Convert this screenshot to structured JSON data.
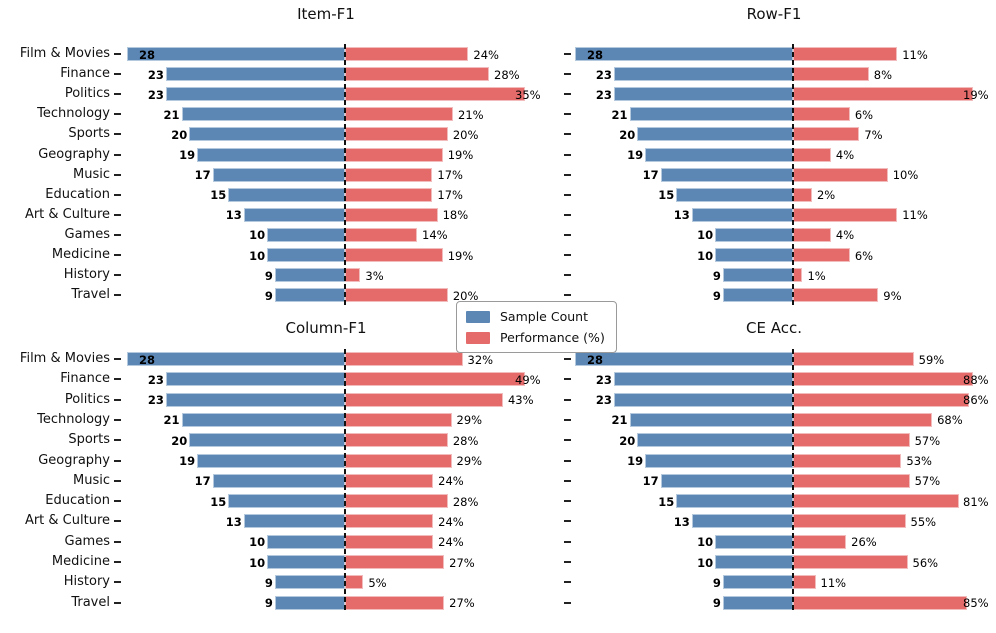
{
  "chart_data": {
    "type": "bar",
    "variant": "diverging-horizontal-grid-2x2",
    "categories": [
      "Film & Movies",
      "Finance",
      "Politics",
      "Technology",
      "Sports",
      "Geography",
      "Music",
      "Education",
      "Art & Culture",
      "Games",
      "Medicine",
      "History",
      "Travel"
    ],
    "sample_counts": [
      28,
      23,
      23,
      21,
      20,
      19,
      17,
      15,
      13,
      10,
      10,
      9,
      9
    ],
    "subplots": [
      {
        "title": "Item-F1",
        "values": [
          24,
          28,
          35,
          21,
          20,
          19,
          17,
          17,
          18,
          14,
          19,
          3,
          20
        ]
      },
      {
        "title": "Row-F1",
        "values": [
          11,
          8,
          19,
          6,
          7,
          4,
          10,
          2,
          11,
          4,
          6,
          1,
          9
        ]
      },
      {
        "title": "Column-F1",
        "values": [
          32,
          49,
          43,
          29,
          28,
          29,
          24,
          28,
          24,
          24,
          27,
          5,
          27
        ]
      },
      {
        "title": "CE Acc.",
        "values": [
          59,
          88,
          86,
          68,
          57,
          53,
          57,
          81,
          55,
          26,
          56,
          11,
          85
        ]
      }
    ],
    "value_suffix": "%",
    "count_axis_max": 28,
    "performance_axis": "scaled to each subplot's maximum value",
    "legend": {
      "items": [
        {
          "label": "Sample Count",
          "color": "#5C87B5"
        },
        {
          "label": "Performance (%)",
          "color": "#E56A6A"
        }
      ]
    },
    "colors": {
      "bar_blue": "#5C87B5",
      "bar_red": "#E56A6A",
      "center_line": "#111111",
      "text": "#111111",
      "background": "#ffffff"
    },
    "layout_hints": {
      "grid": "2x2",
      "center_line_style": "black dashed vertical at zero",
      "legend_position": "centered between the four subplots",
      "category_labels": "left column only, right-aligned with tick dashes"
    }
  }
}
